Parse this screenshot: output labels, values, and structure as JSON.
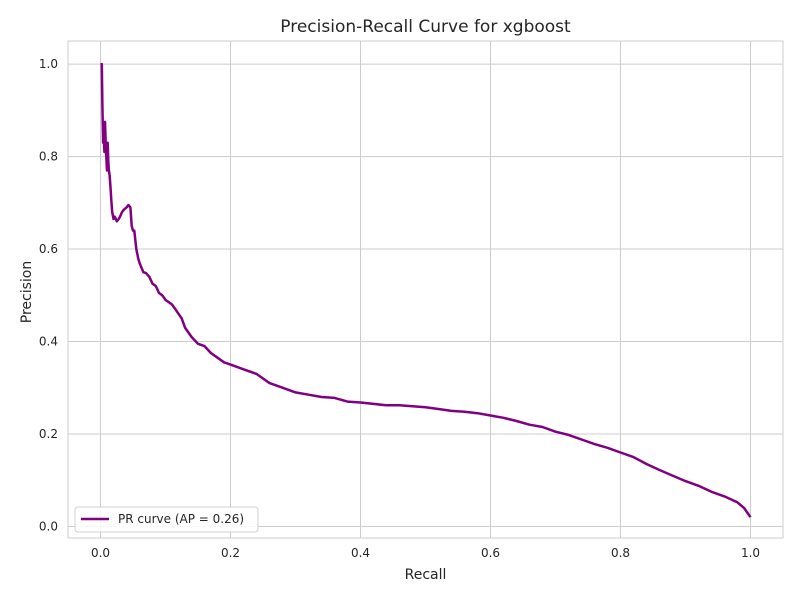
{
  "chart_data": {
    "type": "line",
    "title": "Precision-Recall Curve for xgboost",
    "xlabel": "Recall",
    "ylabel": "Precision",
    "xlim": [
      -0.05,
      1.05
    ],
    "ylim": [
      -0.025,
      1.05
    ],
    "x_ticks": [
      0.0,
      0.2,
      0.4,
      0.6,
      0.8,
      1.0
    ],
    "x_tick_labels": [
      "0.0",
      "0.2",
      "0.4",
      "0.6",
      "0.8",
      "1.0"
    ],
    "y_ticks": [
      0.0,
      0.2,
      0.4,
      0.6,
      0.8,
      1.0
    ],
    "y_tick_labels": [
      "0.0",
      "0.2",
      "0.4",
      "0.6",
      "0.8",
      "1.0"
    ],
    "grid": true,
    "legend_position": "lower-left",
    "series": [
      {
        "name": "PR curve (AP = 0.26)",
        "color": "#800080",
        "x": [
          0.0,
          0.002,
          0.003,
          0.004,
          0.004,
          0.005,
          0.006,
          0.007,
          0.008,
          0.009,
          0.01,
          0.011,
          0.012,
          0.013,
          0.014,
          0.015,
          0.017,
          0.018,
          0.02,
          0.022,
          0.025,
          0.028,
          0.03,
          0.033,
          0.036,
          0.04,
          0.043,
          0.046,
          0.048,
          0.05,
          0.052,
          0.055,
          0.058,
          0.06,
          0.063,
          0.066,
          0.07,
          0.075,
          0.08,
          0.085,
          0.09,
          0.095,
          0.1,
          0.105,
          0.11,
          0.115,
          0.12,
          0.125,
          0.13,
          0.14,
          0.15,
          0.16,
          0.17,
          0.18,
          0.19,
          0.2,
          0.22,
          0.24,
          0.26,
          0.28,
          0.3,
          0.32,
          0.34,
          0.36,
          0.38,
          0.4,
          0.42,
          0.44,
          0.46,
          0.48,
          0.5,
          0.52,
          0.54,
          0.56,
          0.58,
          0.6,
          0.62,
          0.64,
          0.66,
          0.68,
          0.7,
          0.72,
          0.74,
          0.76,
          0.78,
          0.8,
          0.82,
          0.84,
          0.86,
          0.88,
          0.9,
          0.92,
          0.94,
          0.96,
          0.98,
          0.99,
          1.0
        ],
        "y": [
          1.0,
          1.0,
          0.91,
          0.83,
          0.86,
          0.85,
          0.81,
          0.875,
          0.83,
          0.8,
          0.77,
          0.83,
          0.79,
          0.77,
          0.76,
          0.74,
          0.7,
          0.68,
          0.665,
          0.67,
          0.66,
          0.665,
          0.67,
          0.68,
          0.685,
          0.69,
          0.695,
          0.69,
          0.65,
          0.64,
          0.64,
          0.6,
          0.58,
          0.57,
          0.56,
          0.55,
          0.548,
          0.54,
          0.525,
          0.52,
          0.505,
          0.5,
          0.49,
          0.485,
          0.48,
          0.47,
          0.46,
          0.45,
          0.43,
          0.41,
          0.395,
          0.39,
          0.375,
          0.365,
          0.355,
          0.35,
          0.34,
          0.33,
          0.31,
          0.3,
          0.29,
          0.285,
          0.28,
          0.278,
          0.27,
          0.268,
          0.265,
          0.262,
          0.262,
          0.26,
          0.258,
          0.254,
          0.25,
          0.248,
          0.245,
          0.24,
          0.235,
          0.228,
          0.22,
          0.215,
          0.205,
          0.198,
          0.188,
          0.178,
          0.17,
          0.16,
          0.15,
          0.135,
          0.122,
          0.11,
          0.098,
          0.088,
          0.075,
          0.065,
          0.052,
          0.04,
          0.02
        ]
      }
    ]
  }
}
